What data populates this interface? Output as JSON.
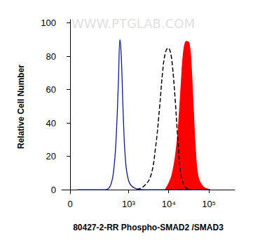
{
  "chart_data": {
    "type": "histogram_overlay",
    "x_label": "80427-2-RR Phospho-SMAD2 /SMAD3",
    "y_label": "Relative Cell Number",
    "annotations": [
      "WWW.PTGLAB.COM"
    ],
    "log": "x",
    "xlim": [
      -36,
      440000
    ],
    "xticks": [
      0,
      {
        "value": 1000,
        "label": "10³"
      },
      {
        "value": 10000,
        "label": "10⁴"
      },
      {
        "value": 100000,
        "label": "10⁵"
      }
    ],
    "ylim": [
      -2.5,
      102
    ],
    "yticks": [
      0,
      20,
      40,
      60,
      80,
      100
    ],
    "grid": false,
    "series": [
      {
        "type": "area",
        "color": "#ff0000",
        "line_style": "solid",
        "x": [
          8200,
          11800,
          15600,
          18300,
          20700,
          23300,
          27400,
          32000,
          36100,
          40700,
          46000,
          53700,
          70800,
          107000
        ],
        "values": [
          0,
          8,
          25,
          45,
          65,
          82,
          89,
          88,
          75,
          50,
          25,
          8,
          2,
          0
        ]
      },
      {
        "type": "line",
        "color": "#000000",
        "line_style": "dashed",
        "x": [
          1600,
          2400,
          3550,
          4700,
          5970,
          7020,
          8230,
          9670,
          10900,
          12300,
          14400,
          16900,
          19900,
          25100,
          32000
        ],
        "values": [
          0,
          2,
          8,
          25,
          50,
          70,
          82,
          85,
          83,
          75,
          55,
          30,
          10,
          2,
          0
        ]
      },
      {
        "type": "line",
        "color": "#0d1a8c",
        "line_style": "solid",
        "x": [
          30,
          260,
          360,
          440,
          500,
          560,
          610,
          660,
          740,
          840,
          1020,
          1400,
          2400,
          107000
        ],
        "values": [
          0,
          0,
          3,
          15,
          35,
          65,
          90,
          80,
          45,
          18,
          5,
          1,
          0,
          0
        ]
      }
    ]
  }
}
